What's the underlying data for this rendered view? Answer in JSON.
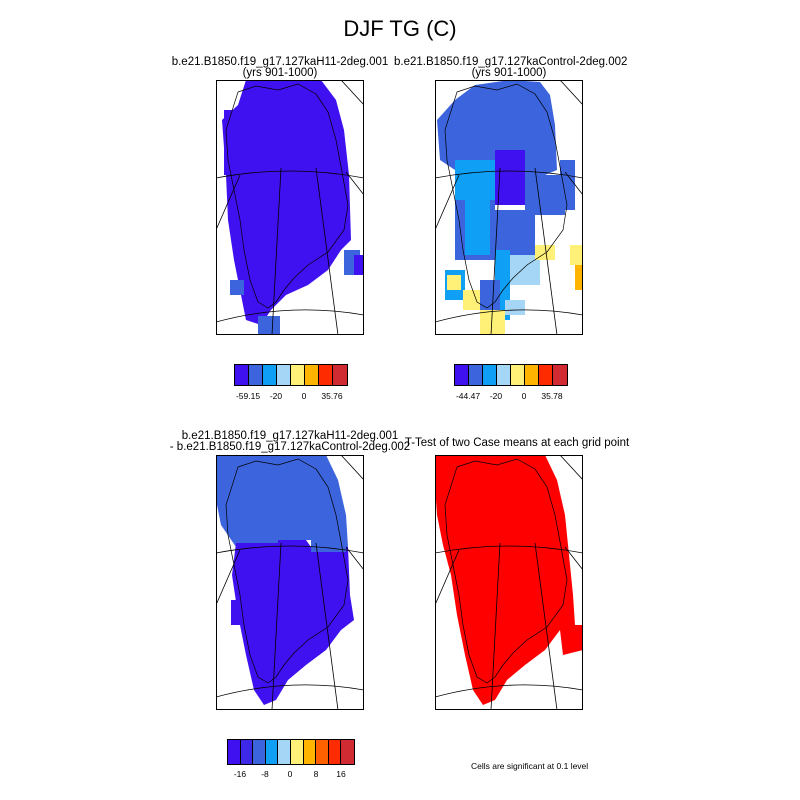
{
  "figure_title": "DJF TG (C)",
  "colors": {
    "scale": [
      "#4011f0",
      "#3c64dc",
      "#0fa0f5",
      "#a5d6f5",
      "#fff078",
      "#ffb400",
      "#ff2b00",
      "#d02b33"
    ],
    "land_outline": "#000000",
    "grid": "#000000"
  },
  "panels": [
    {
      "id": "case1",
      "title_line1": "b.e21.B1850.f19_g17.127kaH11-2deg.001",
      "title_line2": "(yrs 901-1000)",
      "legend": {
        "labels": [
          "-59.15",
          "-20",
          "0",
          "35.76"
        ]
      }
    },
    {
      "id": "case2",
      "title_line1": "b.e21.B1850.f19_g17.127kaControl-2deg.002",
      "title_line2": "(yrs 901-1000)",
      "legend": {
        "labels": [
          "-44.47",
          "-20",
          "0",
          "35.78"
        ]
      }
    },
    {
      "id": "difference",
      "title_line1": "b.e21.B1850.f19_g17.127kaH11-2deg.001",
      "title_line2": "- b.e21.B1850.f19_g17.127kaControl-2deg.002",
      "legend": {
        "labels": [
          "-16",
          "-8",
          "0",
          "8",
          "16"
        ]
      }
    },
    {
      "id": "ttest",
      "title_line1": "T-Test of two Case means at each grid point",
      "note": "Cells are significant at 0.1 level"
    }
  ]
}
